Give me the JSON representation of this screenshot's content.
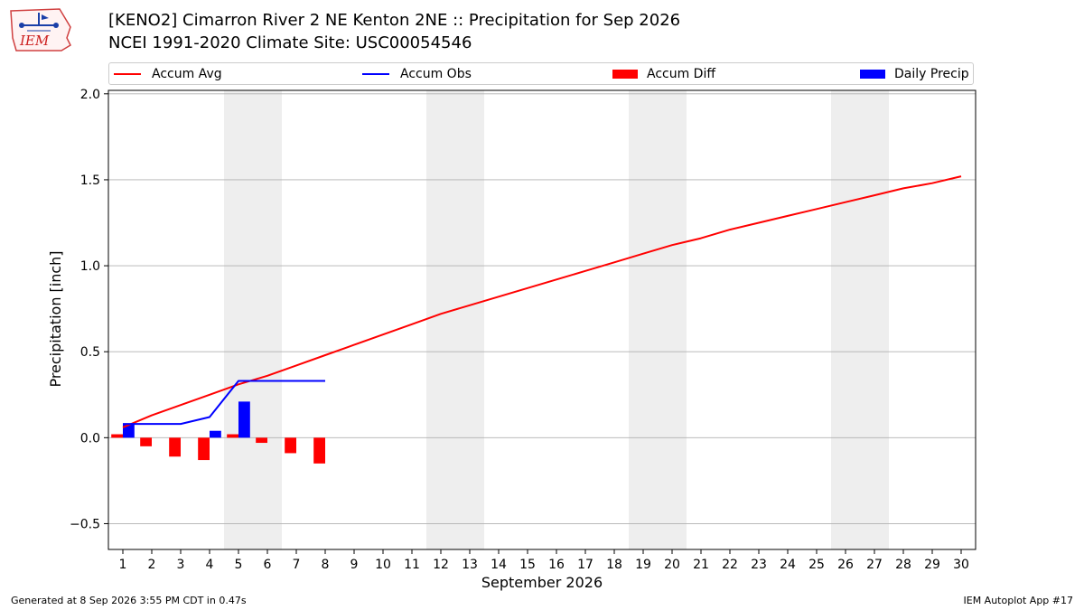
{
  "logo": {
    "text": "IEM"
  },
  "header": {
    "title_line1": "[KENO2] Cimarron River 2 NE Kenton 2NE :: Precipitation for Sep 2026",
    "title_line2": "NCEI 1991-2020 Climate Site: USC00054546"
  },
  "footer": {
    "generated": "Generated at 8 Sep 2026 3:55 PM CDT in 0.47s",
    "app": "IEM Autoplot App #17"
  },
  "colors": {
    "avg": "#ff0000",
    "obs": "#0000ff",
    "diff": "#ff0000",
    "daily": "#0000ff",
    "weekend": "#eeeeee",
    "grid": "#b0b0b0"
  },
  "chart_data": {
    "type": "bar",
    "xlabel": "September 2026",
    "ylabel": "Precipitation [inch]",
    "ylim": [
      -0.65,
      2.02
    ],
    "yticks": [
      -0.5,
      0.0,
      0.5,
      1.0,
      1.5,
      2.0
    ],
    "ytick_labels": [
      "−0.5",
      "0.0",
      "0.5",
      "1.0",
      "1.5",
      "2.0"
    ],
    "xlim": [
      0.5,
      30.5
    ],
    "days": [
      1,
      2,
      3,
      4,
      5,
      6,
      7,
      8,
      9,
      10,
      11,
      12,
      13,
      14,
      15,
      16,
      17,
      18,
      19,
      20,
      21,
      22,
      23,
      24,
      25,
      26,
      27,
      28,
      29,
      30
    ],
    "weekend_days": [
      5,
      6,
      12,
      13,
      19,
      20,
      26,
      27
    ],
    "grid": true,
    "legend_position": "top",
    "series": [
      {
        "name": "Accum Avg",
        "kind": "line",
        "x": [
          1,
          2,
          3,
          4,
          5,
          6,
          7,
          8,
          9,
          10,
          11,
          12,
          13,
          14,
          15,
          16,
          17,
          18,
          19,
          20,
          21,
          22,
          23,
          24,
          25,
          26,
          27,
          28,
          29,
          30
        ],
        "values": [
          0.06,
          0.13,
          0.19,
          0.25,
          0.31,
          0.36,
          0.42,
          0.48,
          0.54,
          0.6,
          0.66,
          0.72,
          0.77,
          0.82,
          0.87,
          0.92,
          0.97,
          1.02,
          1.07,
          1.12,
          1.16,
          1.21,
          1.25,
          1.29,
          1.33,
          1.37,
          1.41,
          1.45,
          1.48,
          1.52
        ]
      },
      {
        "name": "Accum Obs",
        "kind": "line",
        "x": [
          1,
          2,
          3,
          4,
          5,
          6,
          7,
          8
        ],
        "values": [
          0.08,
          0.08,
          0.08,
          0.12,
          0.33,
          0.33,
          0.33,
          0.33
        ]
      },
      {
        "name": "Accum Diff",
        "kind": "bar",
        "x": [
          1,
          2,
          3,
          4,
          5,
          6,
          7,
          8
        ],
        "values": [
          0.02,
          -0.05,
          -0.11,
          -0.13,
          0.02,
          -0.03,
          -0.09,
          -0.15
        ]
      },
      {
        "name": "Daily Precip",
        "kind": "bar",
        "x": [
          1,
          4,
          5
        ],
        "values": [
          0.08,
          0.04,
          0.21
        ]
      }
    ]
  }
}
